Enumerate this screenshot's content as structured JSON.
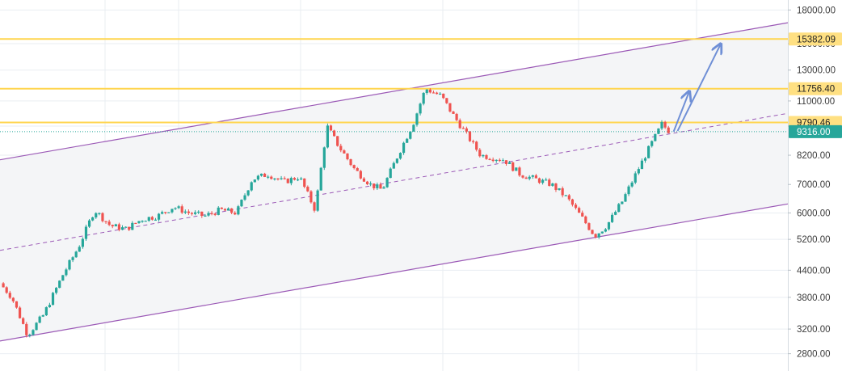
{
  "colors": {
    "background": "#ffffff",
    "grid": "#e9eef2",
    "channel_line": "#9b59b6",
    "channel_fill": "#f4f5f7",
    "midline": "#9b59b6",
    "level_line": "#ffd54f",
    "level_label_bg": "#ffe082",
    "current_price_bg": "#26a69a",
    "up_candle": "#26a69a",
    "down_candle": "#ef5350",
    "projection_arrow": "#6f8fd6",
    "axis_text": "#3a3a3a"
  },
  "chart_data": {
    "type": "candlestick",
    "title": "",
    "xlabel": "",
    "ylabel": "",
    "y_scale": "log",
    "ylim": [
      2550,
      19000
    ],
    "grid": true,
    "y_ticks": [
      "18000.00",
      "15000.00",
      "13000.00",
      "11000.00",
      "9600.00",
      "8200.00",
      "7000.00",
      "6000.00",
      "5200.00",
      "4400.00",
      "3800.00",
      "3200.00",
      "2800.00"
    ],
    "price_levels": [
      {
        "value": 15382.09,
        "label": "15382.09"
      },
      {
        "value": 11756.4,
        "label": "11756.40"
      },
      {
        "value": 9790.46,
        "label": "9790.46"
      }
    ],
    "current_price": {
      "value": 9316.0,
      "label": "9316.00"
    },
    "channel": {
      "upper": [
        {
          "t": 0,
          "price": 8000
        },
        {
          "t": 100,
          "price": 16800
        }
      ],
      "lower": [
        {
          "t": 0,
          "price": 3000
        },
        {
          "t": 100,
          "price": 6300
        }
      ]
    },
    "projection_arrows": [
      {
        "from": {
          "t": 85.5,
          "price": 9316
        },
        "to": {
          "t": 87.5,
          "price": 11600
        }
      },
      {
        "from": {
          "t": 86,
          "price": 9350
        },
        "to": {
          "t": 91.5,
          "price": 15000
        }
      }
    ],
    "price_path": [
      {
        "t": 0,
        "price": 4100
      },
      {
        "t": 1.5,
        "price": 3800
      },
      {
        "t": 3.5,
        "price": 3100
      },
      {
        "t": 5.5,
        "price": 3450
      },
      {
        "t": 8,
        "price": 4300
      },
      {
        "t": 10,
        "price": 5000
      },
      {
        "t": 12,
        "price": 6100
      },
      {
        "t": 14,
        "price": 5600
      },
      {
        "t": 16,
        "price": 5500
      },
      {
        "t": 18,
        "price": 5800
      },
      {
        "t": 20,
        "price": 5900
      },
      {
        "t": 22,
        "price": 6200
      },
      {
        "t": 24,
        "price": 6000
      },
      {
        "t": 26,
        "price": 5900
      },
      {
        "t": 28,
        "price": 6100
      },
      {
        "t": 30,
        "price": 6000
      },
      {
        "t": 32,
        "price": 7200
      },
      {
        "t": 34,
        "price": 7400
      },
      {
        "t": 36,
        "price": 7100
      },
      {
        "t": 38,
        "price": 7300
      },
      {
        "t": 40,
        "price": 6100
      },
      {
        "t": 41.5,
        "price": 9600
      },
      {
        "t": 43,
        "price": 8600
      },
      {
        "t": 45,
        "price": 7600
      },
      {
        "t": 47,
        "price": 7000
      },
      {
        "t": 48.5,
        "price": 6800
      },
      {
        "t": 50.5,
        "price": 8200
      },
      {
        "t": 52.5,
        "price": 9800
      },
      {
        "t": 54,
        "price": 11756.4
      },
      {
        "t": 56,
        "price": 11300
      },
      {
        "t": 57.5,
        "price": 10200
      },
      {
        "t": 59,
        "price": 9300
      },
      {
        "t": 61,
        "price": 8200
      },
      {
        "t": 64,
        "price": 8000
      },
      {
        "t": 66,
        "price": 7400
      },
      {
        "t": 68,
        "price": 7200
      },
      {
        "t": 70,
        "price": 7000
      },
      {
        "t": 72,
        "price": 6500
      },
      {
        "t": 74,
        "price": 5800
      },
      {
        "t": 75.5,
        "price": 5300
      },
      {
        "t": 77,
        "price": 5600
      },
      {
        "t": 79,
        "price": 6400
      },
      {
        "t": 81,
        "price": 7600
      },
      {
        "t": 82.5,
        "price": 8600
      },
      {
        "t": 84,
        "price": 9700
      },
      {
        "t": 85,
        "price": 9316
      }
    ]
  }
}
